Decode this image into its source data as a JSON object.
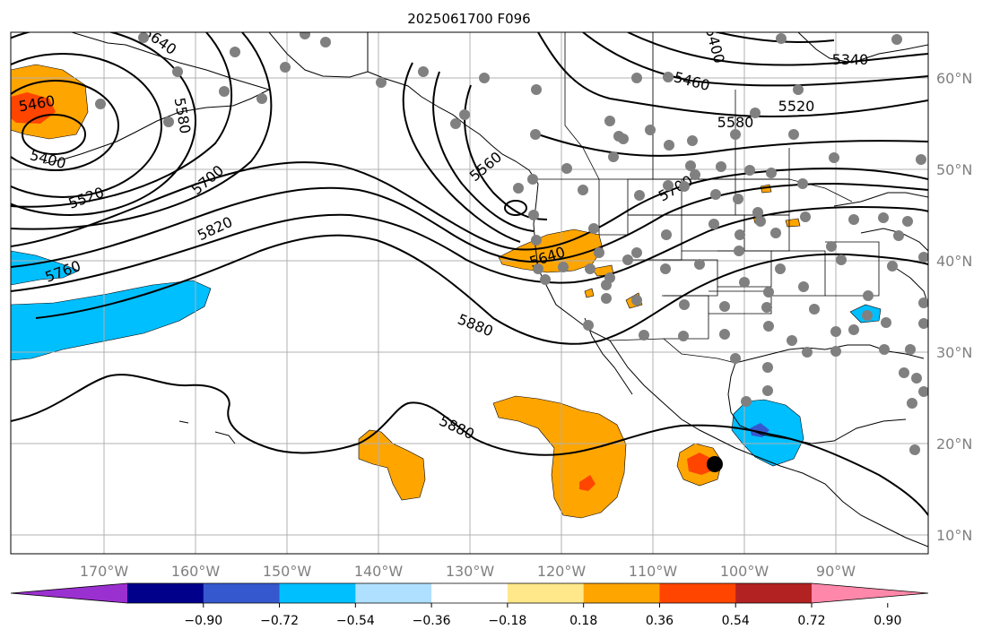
{
  "title": "2025061700 F096",
  "lon_labels": [
    "170°W",
    "160°W",
    "150°W",
    "140°W",
    "130°W",
    "120°W",
    "110°W",
    "100°W",
    "90°W"
  ],
  "lat_labels": [
    "60°N",
    "50°N",
    "40°N",
    "30°N",
    "20°N",
    "10°N"
  ],
  "contour_labels": [
    "5460",
    "5400",
    "5520",
    "5580",
    "5640",
    "5700",
    "5820",
    "5760",
    "5880",
    "5560",
    "5640",
    "5700",
    "5880",
    "5460",
    "5520",
    "5580",
    "5340",
    "5400"
  ],
  "colorbar": {
    "ticks": [
      "−0.90",
      "−0.72",
      "−0.54",
      "−0.36",
      "−0.18",
      "0.18",
      "0.36",
      "0.54",
      "0.72",
      "0.90"
    ],
    "colors": [
      "#9b30d0",
      "#00008b",
      "#3558cf",
      "#00bfff",
      "#b0e0ff",
      "#ffffff",
      "#ffe88a",
      "#ffa500",
      "#ff4500",
      "#b22222",
      "#ff88aa"
    ]
  },
  "colors": {
    "grid": "#b0b0b0",
    "station": "#808080",
    "storm_marker": "#000000"
  }
}
